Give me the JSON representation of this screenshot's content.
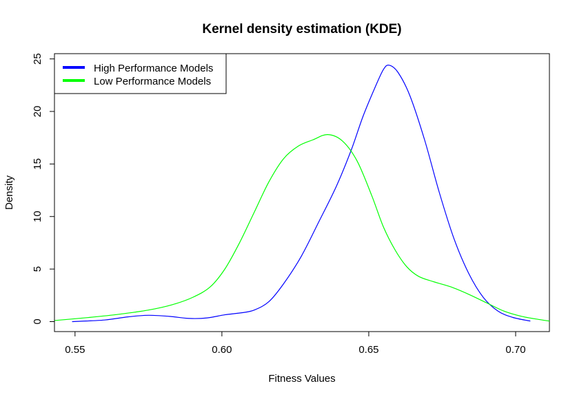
{
  "chart_data": {
    "type": "line",
    "title": "Kernel density estimation (KDE)",
    "xlabel": "Fitness Values",
    "ylabel": "Density",
    "xlim": [
      0.543,
      0.7115
    ],
    "ylim": [
      -0.95,
      25.5
    ],
    "x_ticks": [
      0.55,
      0.6,
      0.65,
      0.7
    ],
    "x_tick_labels": [
      "0.55",
      "0.60",
      "0.65",
      "0.70"
    ],
    "y_ticks": [
      0,
      5,
      10,
      15,
      20,
      25
    ],
    "y_tick_labels": [
      "0",
      "5",
      "10",
      "15",
      "20",
      "25"
    ],
    "grid": false,
    "legend_position": "top-left",
    "series": [
      {
        "name": "High Performance Models",
        "color": "#0000ff",
        "points": [
          [
            0.549,
            0.0
          ],
          [
            0.56,
            0.15
          ],
          [
            0.568,
            0.45
          ],
          [
            0.575,
            0.6
          ],
          [
            0.582,
            0.5
          ],
          [
            0.589,
            0.3
          ],
          [
            0.595,
            0.35
          ],
          [
            0.601,
            0.65
          ],
          [
            0.607,
            0.85
          ],
          [
            0.611,
            1.1
          ],
          [
            0.616,
            1.9
          ],
          [
            0.621,
            3.6
          ],
          [
            0.627,
            6.2
          ],
          [
            0.633,
            9.5
          ],
          [
            0.639,
            12.9
          ],
          [
            0.644,
            16.3
          ],
          [
            0.648,
            19.5
          ],
          [
            0.652,
            22.2
          ],
          [
            0.655,
            24.0
          ],
          [
            0.657,
            24.4
          ],
          [
            0.66,
            23.7
          ],
          [
            0.664,
            21.5
          ],
          [
            0.669,
            17.3
          ],
          [
            0.674,
            12.3
          ],
          [
            0.679,
            7.9
          ],
          [
            0.684,
            4.6
          ],
          [
            0.689,
            2.3
          ],
          [
            0.694,
            1.0
          ],
          [
            0.699,
            0.4
          ],
          [
            0.705,
            0.05
          ]
        ]
      },
      {
        "name": "Low Performance Models",
        "color": "#00ff00",
        "points": [
          [
            0.543,
            0.1
          ],
          [
            0.555,
            0.4
          ],
          [
            0.565,
            0.7
          ],
          [
            0.575,
            1.1
          ],
          [
            0.583,
            1.6
          ],
          [
            0.59,
            2.3
          ],
          [
            0.596,
            3.3
          ],
          [
            0.601,
            5.0
          ],
          [
            0.606,
            7.5
          ],
          [
            0.611,
            10.4
          ],
          [
            0.616,
            13.3
          ],
          [
            0.621,
            15.5
          ],
          [
            0.626,
            16.7
          ],
          [
            0.631,
            17.3
          ],
          [
            0.636,
            17.8
          ],
          [
            0.641,
            17.2
          ],
          [
            0.646,
            15.3
          ],
          [
            0.651,
            12.0
          ],
          [
            0.655,
            9.0
          ],
          [
            0.659,
            6.8
          ],
          [
            0.663,
            5.2
          ],
          [
            0.667,
            4.3
          ],
          [
            0.672,
            3.8
          ],
          [
            0.678,
            3.3
          ],
          [
            0.684,
            2.6
          ],
          [
            0.69,
            1.8
          ],
          [
            0.696,
            1.0
          ],
          [
            0.702,
            0.5
          ],
          [
            0.708,
            0.2
          ],
          [
            0.7115,
            0.05
          ]
        ]
      }
    ]
  }
}
